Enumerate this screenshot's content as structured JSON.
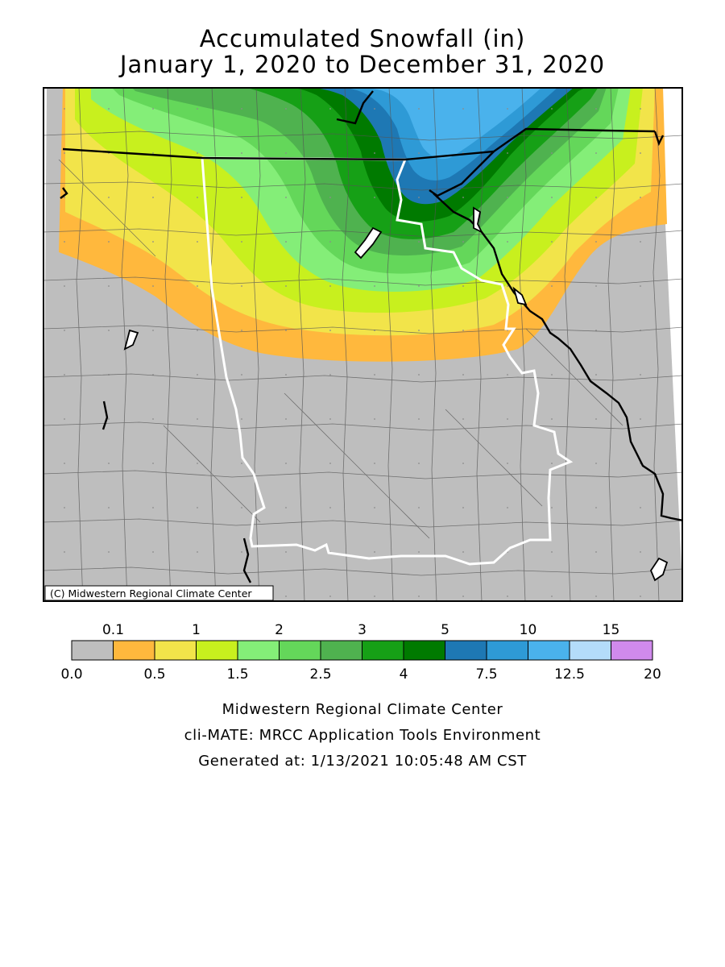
{
  "title": {
    "line1": "Accumulated Snowfall (in)",
    "line2": "January 1, 2020 to December 31, 2020"
  },
  "map": {
    "copyright": "(C) Midwestern Regional Climate Center",
    "no_snow_color": "#bebebe",
    "state_border_color": "#ffffff",
    "boundary_color": "#000000",
    "county_line_color": "#555555"
  },
  "legend": {
    "top_labels": [
      "0.1",
      "1",
      "2",
      "3",
      "5",
      "10",
      "15"
    ],
    "bottom_labels": [
      "0.0",
      "0.5",
      "1.5",
      "2.5",
      "4",
      "7.5",
      "12.5",
      "20"
    ],
    "bins": [
      {
        "color": "#bebebe"
      },
      {
        "color": "#ffb83d"
      },
      {
        "color": "#f2e44a"
      },
      {
        "color": "#c8f01e"
      },
      {
        "color": "#84ee78"
      },
      {
        "color": "#64d75a"
      },
      {
        "color": "#4fb24f"
      },
      {
        "color": "#16a016"
      },
      {
        "color": "#007a00"
      },
      {
        "color": "#1e78b4"
      },
      {
        "color": "#2e9ad6"
      },
      {
        "color": "#4ab2ec"
      },
      {
        "color": "#b4dcfa"
      },
      {
        "color": "#d08aec"
      }
    ]
  },
  "footer": {
    "line1": "Midwestern Regional Climate Center",
    "line2": "cli-MATE: MRCC Application Tools Environment",
    "line3": "Generated at: 1/13/2021 10:05:48 AM CST"
  }
}
